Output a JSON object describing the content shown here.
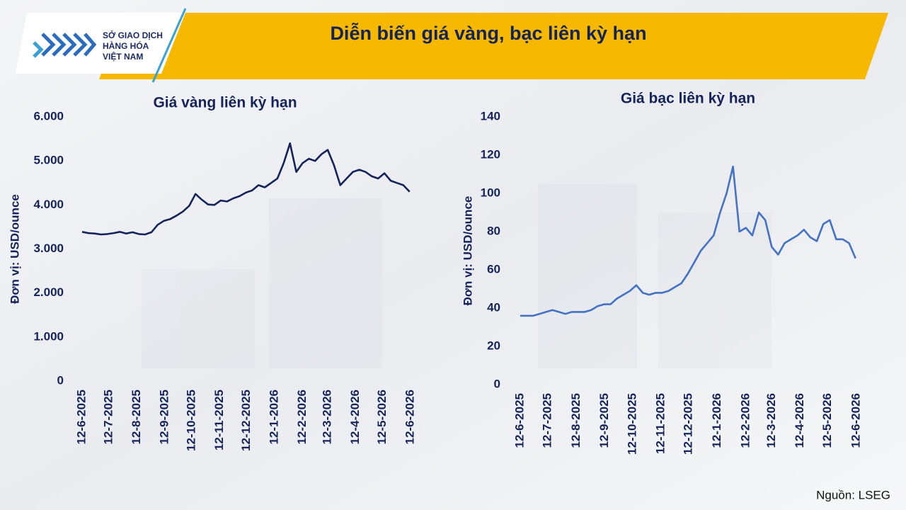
{
  "header": {
    "logo_lines": [
      "SỞ GIAO DỊCH",
      "HÀNG HÓA",
      "VIỆT NAM"
    ],
    "title": "Diễn biến giá vàng, bạc liên kỳ hạn"
  },
  "chart_data": [
    {
      "type": "line",
      "title": "Giá vàng liên kỳ hạn",
      "ylabel": "Đơn vị: USD/ounce",
      "color": "#14245a",
      "x": [
        "12-6-2025",
        "19-6-2025",
        "26-6-2025",
        "3-7-2025",
        "10-7-2025",
        "17-7-2025",
        "24-7-2025",
        "31-7-2025",
        "7-8-2025",
        "14-8-2025",
        "21-8-2025",
        "28-8-2025",
        "4-9-2025",
        "11-9-2025",
        "18-9-2025",
        "25-9-2025",
        "2-10-2025",
        "9-10-2025",
        "16-10-2025",
        "23-10-2025",
        "30-10-2025",
        "6-11-2025",
        "13-11-2025",
        "20-11-2025",
        "27-11-2025",
        "4-12-2025",
        "11-12-2025",
        "18-12-2025",
        "25-12-2025",
        "1-1-2026",
        "8-1-2026",
        "15-1-2026",
        "22-1-2026",
        "29-1-2026",
        "5-2-2026",
        "12-2-2026",
        "19-2-2026",
        "26-2-2026",
        "5-3-2026",
        "12-3-2026",
        "19-3-2026",
        "26-3-2026",
        "2-4-2026",
        "9-4-2026",
        "16-4-2026",
        "23-4-2026",
        "30-4-2026",
        "7-5-2026",
        "14-5-2026",
        "21-5-2026",
        "28-5-2026",
        "4-6-2026",
        "11-6-2026"
      ],
      "values": [
        3390,
        3360,
        3350,
        3330,
        3340,
        3360,
        3390,
        3350,
        3380,
        3340,
        3330,
        3380,
        3550,
        3640,
        3680,
        3760,
        3850,
        3980,
        4250,
        4120,
        4010,
        4000,
        4100,
        4080,
        4150,
        4200,
        4280,
        4330,
        4450,
        4400,
        4500,
        4600,
        4950,
        5400,
        4750,
        4950,
        5050,
        5000,
        5150,
        5250,
        4900,
        4450,
        4600,
        4750,
        4800,
        4750,
        4650,
        4600,
        4720,
        4550,
        4500,
        4450,
        4300
      ],
      "xticks": [
        "12-6-2025",
        "12-7-2025",
        "12-8-2025",
        "12-9-2025",
        "12-10-2025",
        "12-11-2025",
        "12-12-2025",
        "12-1-2026",
        "12-2-2026",
        "12-3-2026",
        "12-4-2026",
        "12-5-2026",
        "12-6-2026"
      ],
      "ylim": [
        0,
        6000
      ],
      "yticks": [
        0,
        {
          "value": 1000,
          "label": "1.000"
        },
        {
          "value": 2000,
          "label": "2.000"
        },
        {
          "value": 3000,
          "label": "3.000"
        },
        {
          "value": 4000,
          "label": "4.000"
        },
        {
          "value": 5000,
          "label": "5.000"
        },
        {
          "value": 6000,
          "label": "6.000"
        }
      ]
    },
    {
      "type": "line",
      "title": "Giá bạc liên kỳ hạn",
      "ylabel": "Đơn vị: USD/ounce",
      "color": "#4472c4",
      "x": [
        "12-6-2025",
        "19-6-2025",
        "26-6-2025",
        "3-7-2025",
        "10-7-2025",
        "17-7-2025",
        "24-7-2025",
        "31-7-2025",
        "7-8-2025",
        "14-8-2025",
        "21-8-2025",
        "28-8-2025",
        "4-9-2025",
        "11-9-2025",
        "18-9-2025",
        "25-9-2025",
        "2-10-2025",
        "9-10-2025",
        "16-10-2025",
        "23-10-2025",
        "30-10-2025",
        "6-11-2025",
        "13-11-2025",
        "20-11-2025",
        "27-11-2025",
        "4-12-2025",
        "11-12-2025",
        "18-12-2025",
        "25-12-2025",
        "1-1-2026",
        "8-1-2026",
        "15-1-2026",
        "22-1-2026",
        "29-1-2026",
        "5-2-2026",
        "12-2-2026",
        "19-2-2026",
        "26-2-2026",
        "5-3-2026",
        "12-3-2026",
        "19-3-2026",
        "26-3-2026",
        "2-4-2026",
        "9-4-2026",
        "16-4-2026",
        "23-4-2026",
        "30-4-2026",
        "7-5-2026",
        "14-5-2026",
        "21-5-2026",
        "28-5-2026",
        "4-6-2026",
        "11-6-2026"
      ],
      "values": [
        36,
        36,
        36,
        37,
        38,
        39,
        38,
        37,
        38,
        38,
        38,
        39,
        41,
        42,
        42,
        45,
        47,
        49,
        52,
        48,
        47,
        48,
        48,
        49,
        51,
        53,
        58,
        64,
        70,
        74,
        78,
        90,
        100,
        114,
        80,
        82,
        78,
        90,
        86,
        72,
        68,
        74,
        76,
        78,
        81,
        77,
        75,
        84,
        86,
        76,
        76,
        74,
        66
      ],
      "xticks": [
        "12-6-2025",
        "12-7-2025",
        "12-8-2025",
        "12-9-2025",
        "12-10-2025",
        "12-11-2025",
        "12-12-2025",
        "12-1-2026",
        "12-2-2026",
        "12-3-2026",
        "12-4-2026",
        "12-5-2026",
        "12-6-2026"
      ],
      "ylim": [
        0,
        140
      ],
      "yticks": [
        0,
        20,
        40,
        60,
        80,
        100,
        120,
        140
      ]
    }
  ],
  "source": "Nguồn: LSEG"
}
